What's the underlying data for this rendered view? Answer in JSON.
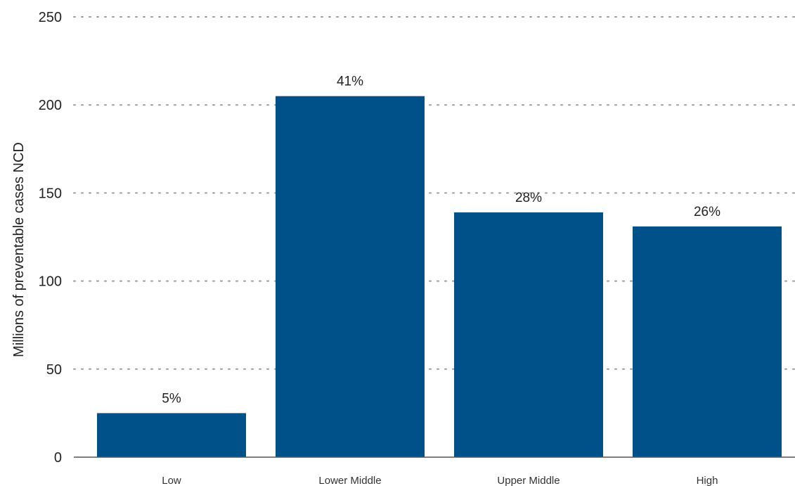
{
  "chart_data": {
    "type": "bar",
    "title": "",
    "xlabel": "",
    "ylabel": "Millions of preventable cases NCD",
    "categories": [
      "Low",
      "Lower Middle",
      "Upper Middle",
      "High"
    ],
    "values": [
      25,
      205,
      139,
      131
    ],
    "data_labels": [
      "5%",
      "41%",
      "28%",
      "26%"
    ],
    "ylim": [
      0,
      250
    ],
    "yticks": [
      0,
      50,
      100,
      150,
      200,
      250
    ],
    "grid": true,
    "grid_style": "dotted",
    "legend": "none",
    "bar_color": "#00508a"
  }
}
